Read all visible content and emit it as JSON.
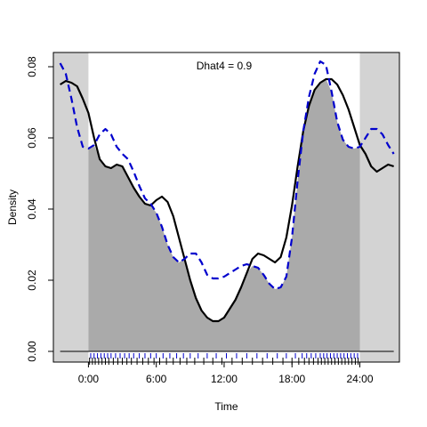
{
  "chart_data": {
    "type": "area",
    "title": "",
    "annotation": "Dhat4 = 0.9",
    "xlabel": "Time",
    "ylabel": "Density",
    "xlim": [
      -3.1,
      27.5
    ],
    "ylim": [
      -0.003,
      0.084
    ],
    "x_ticks": [
      0,
      6,
      12,
      18,
      24
    ],
    "x_tick_labels": [
      "0:00",
      "6:00",
      "12:00",
      "18:00",
      "24:00"
    ],
    "y_ticks": [
      0.0,
      0.02,
      0.04,
      0.06,
      0.08
    ],
    "y_tick_labels": [
      "0.00",
      "0.02",
      "0.04",
      "0.06",
      "0.08"
    ],
    "colors": {
      "panel_shade": "#d3d3d3",
      "overlap_fill": "#aaaaaa",
      "series_1": "#000000",
      "series_2": "#0000cd",
      "rug_1": "#000000",
      "rug_2": "#0000cd"
    },
    "shaded_x_ranges": [
      [
        -3.1,
        0
      ],
      [
        24,
        27.5
      ]
    ],
    "series": [
      {
        "style": "solid",
        "x": [
          -2.5,
          -2,
          -1.5,
          -1,
          -0.5,
          0,
          0.5,
          1,
          1.5,
          2,
          2.5,
          3,
          3.5,
          4,
          4.5,
          5,
          5.5,
          6,
          6.5,
          7,
          7.5,
          8,
          8.5,
          9,
          9.5,
          10,
          10.5,
          11,
          11.5,
          12,
          12.5,
          13,
          13.5,
          14,
          14.5,
          15,
          15.5,
          16,
          16.5,
          17,
          17.5,
          18,
          18.5,
          19,
          19.5,
          20,
          20.5,
          21,
          21.5,
          22,
          22.5,
          23,
          23.5,
          24,
          24.5,
          25,
          25.5,
          26,
          26.5,
          27
        ],
        "y": [
          0.075,
          0.076,
          0.0755,
          0.0745,
          0.071,
          0.067,
          0.06,
          0.054,
          0.052,
          0.0515,
          0.0525,
          0.052,
          0.049,
          0.046,
          0.0435,
          0.0415,
          0.041,
          0.0425,
          0.0435,
          0.042,
          0.038,
          0.032,
          0.026,
          0.02,
          0.015,
          0.0115,
          0.0095,
          0.0085,
          0.0085,
          0.0095,
          0.012,
          0.0145,
          0.018,
          0.022,
          0.026,
          0.0275,
          0.027,
          0.026,
          0.025,
          0.0265,
          0.032,
          0.041,
          0.052,
          0.062,
          0.069,
          0.0735,
          0.0755,
          0.0765,
          0.0765,
          0.075,
          0.072,
          0.068,
          0.063,
          0.058,
          0.0555,
          0.052,
          0.0505,
          0.0515,
          0.0525,
          0.052
        ]
      },
      {
        "style": "dashed",
        "x": [
          -2.5,
          -2,
          -1.5,
          -1,
          -0.5,
          0,
          0.5,
          1,
          1.5,
          2,
          2.5,
          3,
          3.5,
          4,
          4.5,
          5,
          5.5,
          6,
          6.5,
          7,
          7.5,
          8,
          8.5,
          9,
          9.5,
          10,
          10.5,
          11,
          11.5,
          12,
          12.5,
          13,
          13.5,
          14,
          14.5,
          15,
          15.5,
          16,
          16.5,
          17,
          17.5,
          18,
          18.5,
          19,
          19.5,
          20,
          20.5,
          21,
          21.5,
          22,
          22.5,
          23,
          23.5,
          24,
          24.5,
          25,
          25.5,
          26,
          26.5,
          27
        ],
        "y": [
          0.081,
          0.078,
          0.071,
          0.063,
          0.0575,
          0.057,
          0.058,
          0.061,
          0.0625,
          0.061,
          0.0575,
          0.0555,
          0.054,
          0.0505,
          0.0465,
          0.043,
          0.0415,
          0.039,
          0.035,
          0.03,
          0.0265,
          0.025,
          0.026,
          0.0275,
          0.0275,
          0.025,
          0.0215,
          0.0205,
          0.0205,
          0.021,
          0.022,
          0.023,
          0.024,
          0.0245,
          0.024,
          0.0235,
          0.0215,
          0.019,
          0.0175,
          0.018,
          0.021,
          0.032,
          0.048,
          0.062,
          0.0715,
          0.078,
          0.0815,
          0.0805,
          0.073,
          0.0645,
          0.0595,
          0.0575,
          0.057,
          0.0575,
          0.06,
          0.0625,
          0.0625,
          0.061,
          0.058,
          0.0555
        ]
      }
    ],
    "rug_1_x": [
      0.1,
      0.35,
      0.6,
      0.9,
      1.2,
      1.5,
      1.8,
      2.2,
      2.6,
      3.0,
      3.4,
      3.8,
      4.3,
      4.8,
      5.3,
      5.8,
      6.3,
      6.9,
      7.5,
      8.1,
      8.7,
      9.4,
      10.2,
      11.0,
      11.8,
      12.7,
      13.6,
      14.5,
      15.4,
      16.3,
      17.2,
      18.0,
      18.6,
      19.1,
      19.5,
      19.9,
      20.3,
      20.6,
      20.9,
      21.2,
      21.5,
      21.8,
      22.1,
      22.4,
      22.7,
      23.0,
      23.3,
      23.6,
      23.85
    ],
    "rug_2_x": [
      0.2,
      0.5,
      0.8,
      1.1,
      1.4,
      1.7,
      2.0,
      2.4,
      2.8,
      3.2,
      3.6,
      4.0,
      4.5,
      5.0,
      5.5,
      6.0,
      6.6,
      7.2,
      7.8,
      8.4,
      9.0,
      9.7,
      10.5,
      11.3,
      12.2,
      13.1,
      14.0,
      14.9,
      15.8,
      16.7,
      17.5,
      18.3,
      18.9,
      19.3,
      19.7,
      20.1,
      20.5,
      20.8,
      21.1,
      21.4,
      21.7,
      22.0,
      22.3,
      22.6,
      22.9,
      23.2,
      23.5,
      23.8
    ]
  }
}
